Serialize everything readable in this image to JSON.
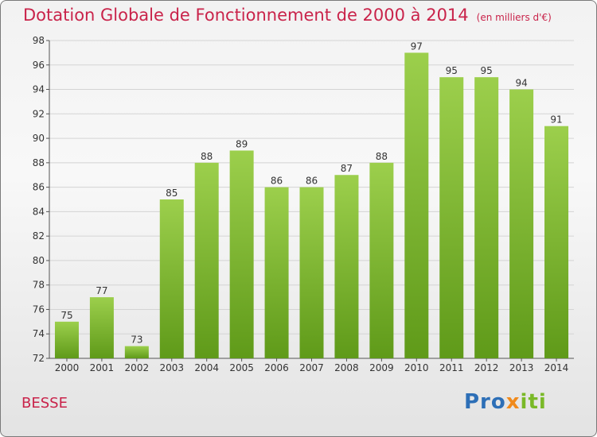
{
  "title": "Dotation Globale de Fonctionnement de 2000 à 2014",
  "unit": "(en milliers d'€)",
  "commune": "BESSE",
  "logo": {
    "p1": "Pro",
    "p2": "x",
    "p3": "iti"
  },
  "colors": {
    "accent": "#c9234a",
    "bar_light": "#9ccf4c",
    "bar_dark": "#5f9a19"
  },
  "chart_data": {
    "type": "bar",
    "categories": [
      "2000",
      "2001",
      "2002",
      "2003",
      "2004",
      "2005",
      "2006",
      "2007",
      "2008",
      "2009",
      "2010",
      "2011",
      "2012",
      "2013",
      "2014"
    ],
    "values": [
      75,
      77,
      73,
      85,
      88,
      89,
      86,
      86,
      87,
      88,
      97,
      95,
      95,
      94,
      91
    ],
    "ylim": [
      72,
      98
    ],
    "yticks": [
      72,
      74,
      76,
      78,
      80,
      82,
      84,
      86,
      88,
      90,
      92,
      94,
      96,
      98
    ],
    "grid": true
  }
}
